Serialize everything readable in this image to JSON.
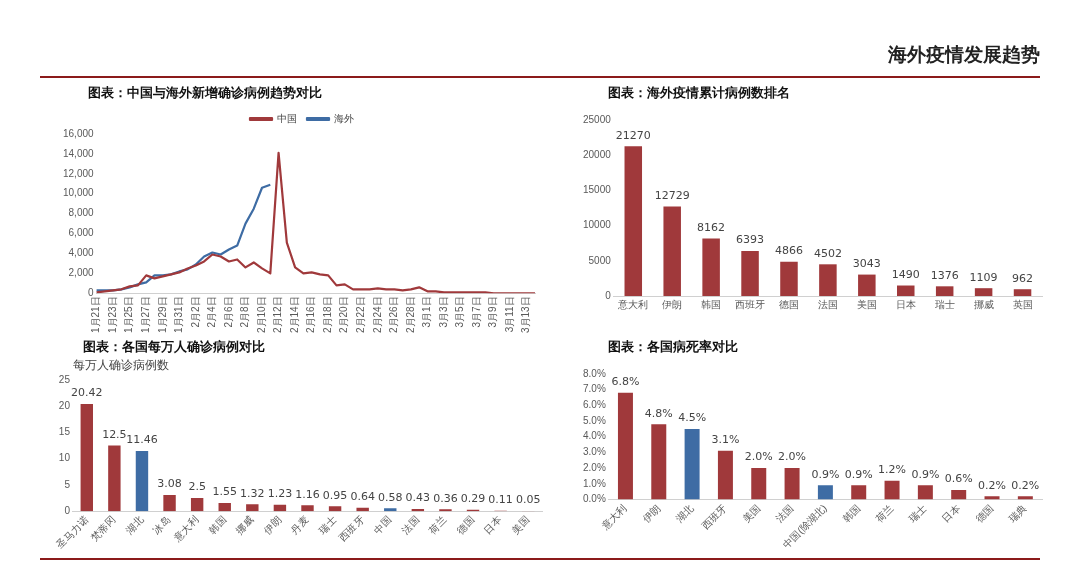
{
  "chart_data": [
    {
      "type": "other",
      "title": "海外疫情发展趋势"
    },
    {
      "type": "line",
      "title": "图表：中国与海外新增确诊病例趋势对比",
      "categories": [
        "1月21日",
        null,
        "1月23日",
        null,
        "1月25日",
        null,
        "1月27日",
        null,
        "1月29日",
        null,
        "1月31日",
        null,
        "2月2日",
        null,
        "2月4日",
        null,
        "2月6日",
        null,
        "2月8日",
        null,
        "2月10日",
        null,
        "2月12日",
        null,
        "2月14日",
        null,
        "2月16日",
        null,
        "2月18日",
        null,
        "2月20日",
        null,
        "2月22日",
        null,
        "2月24日",
        null,
        "2月26日",
        null,
        "2月28日",
        null,
        "3月1日",
        null,
        "3月3日",
        null,
        "3月5日",
        null,
        "3月7日",
        null,
        "3月9日",
        null,
        "3月11日",
        null,
        "3月13日",
        null
      ],
      "series": [
        {
          "name": "中国",
          "color": "#a0393b",
          "values": [
            100,
            200,
            300,
            400,
            700,
            800,
            1800,
            1500,
            1700,
            1900,
            2100,
            2500,
            2800,
            3200,
            3900,
            3700,
            3200,
            3400,
            2600,
            3100,
            2500,
            2000,
            14100,
            5100,
            2600,
            2000,
            2100,
            1900,
            1800,
            800,
            900,
            400,
            400,
            400,
            500,
            400,
            400,
            300,
            400,
            600,
            200,
            200,
            100,
            100,
            100,
            100,
            100,
            100,
            0,
            0,
            0,
            0,
            0,
            0
          ]
        },
        {
          "name": "海外",
          "color": "#3e6ca4",
          "values": [
            300,
            300,
            300,
            400,
            600,
            900,
            1100,
            1800,
            1800,
            1900,
            2200,
            2400,
            2900,
            3700,
            4100,
            3900,
            4400,
            4800,
            7000,
            8500,
            10600,
            10900,
            null,
            null,
            null,
            null,
            null,
            null,
            null,
            null,
            null,
            null,
            null,
            null,
            null,
            null,
            null,
            null,
            null,
            null,
            null,
            null,
            null,
            null,
            null,
            null,
            null,
            null,
            null,
            null,
            null,
            null,
            null,
            null
          ]
        }
      ],
      "ylim": [
        0,
        16000
      ],
      "yticks": [
        0,
        {
          "value": 2000,
          "label": "2,000"
        },
        {
          "value": 4000,
          "label": "4,000"
        },
        {
          "value": 6000,
          "label": "6,000"
        },
        {
          "value": 8000,
          "label": "8,000"
        },
        {
          "value": 10000,
          "label": "10,000"
        },
        {
          "value": 12000,
          "label": "12,000"
        },
        {
          "value": 14000,
          "label": "14,000"
        },
        {
          "value": 16000,
          "label": "16,000"
        }
      ],
      "grid": false,
      "legend": "top",
      "marker": "none",
      "line_style": "solid"
    },
    {
      "type": "bar",
      "title": "图表：海外疫情累计病例数排名",
      "categories": [
        "意大利",
        "伊朗",
        "韩国",
        "西班牙",
        "德国",
        "法国",
        "美国",
        "日本",
        "瑞士",
        "挪威",
        "英国"
      ],
      "values": [
        21270,
        12729,
        8162,
        6393,
        4866,
        4502,
        3043,
        1490,
        1376,
        1109,
        962
      ],
      "color": "#a0393b",
      "ylim": [
        0,
        25000
      ],
      "yticks": [
        0,
        5000,
        10000,
        15000,
        20000,
        25000
      ],
      "grid": false,
      "data_labels": true
    },
    {
      "type": "bar",
      "title": "图表：各国每万人确诊病例对比",
      "ylabel": "每万人确诊病例数",
      "categories": [
        "圣马力诺",
        "梵蒂冈",
        "湖北",
        "冰岛",
        "意大利",
        "韩国",
        "挪威",
        "伊朗",
        "丹麦",
        "瑞士",
        "西班牙",
        "中国",
        "法国",
        "荷兰",
        "德国",
        "日本",
        "美国"
      ],
      "values": [
        20.42,
        12.5,
        11.46,
        3.08,
        2.5,
        1.55,
        1.32,
        1.23,
        1.16,
        0.95,
        0.64,
        0.58,
        0.43,
        0.36,
        0.29,
        0.11,
        0.05
      ],
      "colors": [
        "#a0393b",
        "#a0393b",
        "#3e6ca4",
        "#a0393b",
        "#a0393b",
        "#a0393b",
        "#a0393b",
        "#a0393b",
        "#a0393b",
        "#a0393b",
        "#a0393b",
        "#3e6ca4",
        "#a0393b",
        "#a0393b",
        "#a0393b",
        "#a0393b",
        "#a0393b"
      ],
      "ylim": [
        0,
        25
      ],
      "yticks": [
        0,
        5,
        10,
        15,
        20,
        25
      ],
      "grid": false,
      "data_labels": true
    },
    {
      "type": "bar",
      "title": "图表：各国病死率对比",
      "categories": [
        "意大利",
        "伊朗",
        "湖北",
        "西班牙",
        "美国",
        "法国",
        "中国(除湖北)",
        "韩国",
        "荷兰",
        "瑞士",
        "日本",
        "德国",
        "瑞典"
      ],
      "values": [
        6.8,
        4.8,
        4.5,
        3.1,
        2.0,
        2.0,
        0.9,
        0.9,
        1.2,
        0.9,
        0.6,
        0.2,
        0.2
      ],
      "value_labels": [
        "6.8%",
        "4.8%",
        "4.5%",
        "3.1%",
        "2.0%",
        "2.0%",
        "0.9%",
        "0.9%",
        "1.2%",
        "0.9%",
        "0.6%",
        "0.2%",
        "0.2%"
      ],
      "colors": [
        "#a0393b",
        "#a0393b",
        "#3e6ca4",
        "#a0393b",
        "#a0393b",
        "#a0393b",
        "#3e6ca4",
        "#a0393b",
        "#a0393b",
        "#a0393b",
        "#a0393b",
        "#a0393b",
        "#a0393b"
      ],
      "ylim": [
        0,
        8
      ],
      "yticks": [
        {
          "value": 0,
          "label": "0.0%"
        },
        {
          "value": 1,
          "label": "1.0%"
        },
        {
          "value": 2,
          "label": "2.0%"
        },
        {
          "value": 3,
          "label": "3.0%"
        },
        {
          "value": 4,
          "label": "4.0%"
        },
        {
          "value": 5,
          "label": "5.0%"
        },
        {
          "value": 6,
          "label": "6.0%"
        },
        {
          "value": 7,
          "label": "7.0%"
        },
        {
          "value": 8,
          "label": "8.0%"
        }
      ],
      "grid": false
    }
  ]
}
